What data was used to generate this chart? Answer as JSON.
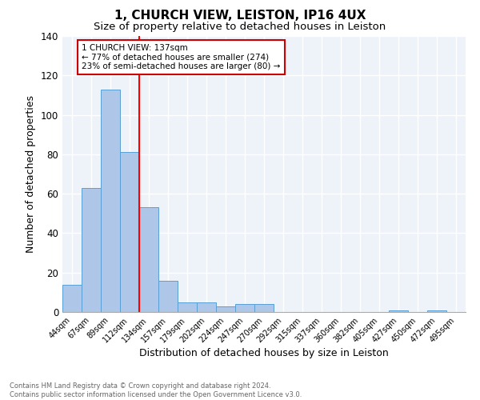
{
  "title": "1, CHURCH VIEW, LEISTON, IP16 4UX",
  "subtitle": "Size of property relative to detached houses in Leiston",
  "xlabel": "Distribution of detached houses by size in Leiston",
  "ylabel": "Number of detached properties",
  "categories": [
    "44sqm",
    "67sqm",
    "89sqm",
    "112sqm",
    "134sqm",
    "157sqm",
    "179sqm",
    "202sqm",
    "224sqm",
    "247sqm",
    "270sqm",
    "292sqm",
    "315sqm",
    "337sqm",
    "360sqm",
    "382sqm",
    "405sqm",
    "427sqm",
    "450sqm",
    "472sqm",
    "495sqm"
  ],
  "values": [
    14,
    63,
    113,
    81,
    53,
    16,
    5,
    5,
    3,
    4,
    4,
    0,
    0,
    0,
    0,
    0,
    0,
    1,
    0,
    1,
    0
  ],
  "bar_color": "#aec6e8",
  "bar_edge_color": "#5a9fd4",
  "background_color": "#eef2f9",
  "grid_color": "#ffffff",
  "red_line_index": 4,
  "annotation_text": "1 CHURCH VIEW: 137sqm\n← 77% of detached houses are smaller (274)\n23% of semi-detached houses are larger (80) →",
  "annotation_box_color": "#ffffff",
  "annotation_box_edge_color": "#cc0000",
  "ylim": [
    0,
    140
  ],
  "yticks": [
    0,
    20,
    40,
    60,
    80,
    100,
    120,
    140
  ],
  "footnote": "Contains HM Land Registry data © Crown copyright and database right 2024.\nContains public sector information licensed under the Open Government Licence v3.0.",
  "title_fontsize": 11,
  "subtitle_fontsize": 9.5,
  "xlabel_fontsize": 9,
  "ylabel_fontsize": 9
}
